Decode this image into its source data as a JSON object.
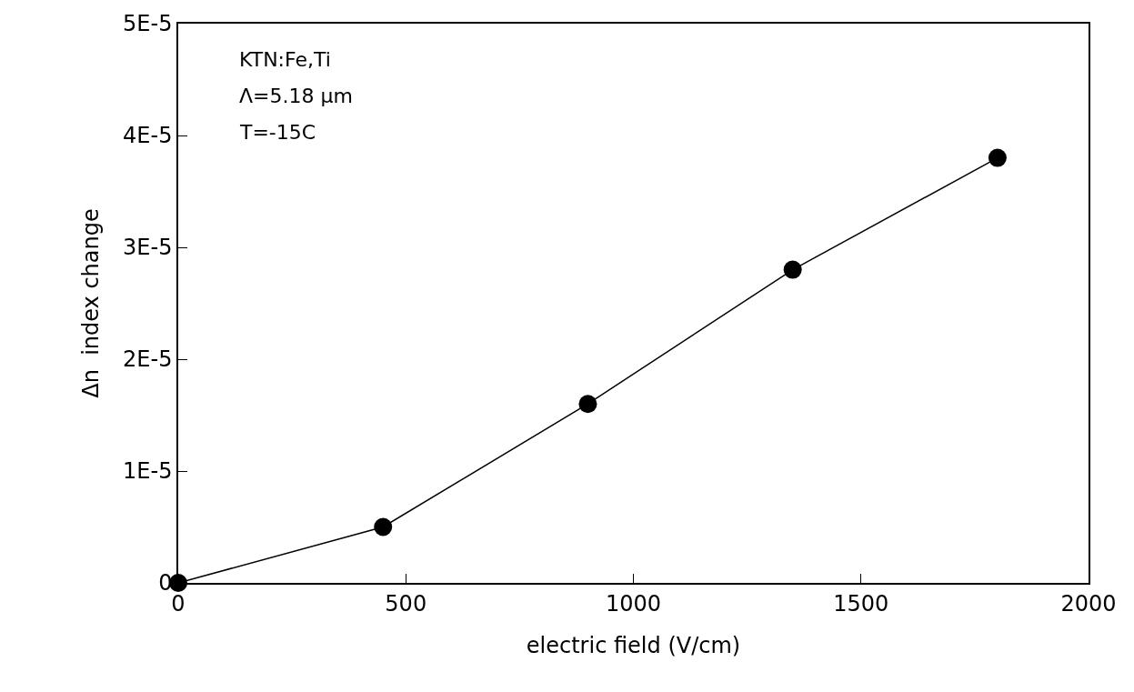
{
  "chart_data": {
    "type": "line",
    "xlabel": "electric field (V/cm)",
    "ylabel": "Δn  index change",
    "x": [
      0,
      450,
      900,
      1350,
      1800
    ],
    "series": [
      {
        "color": "#000000",
        "values": [
          0,
          5e-06,
          1.6e-05,
          2.8e-05,
          3.8e-05
        ]
      }
    ],
    "xlim": [
      0,
      2000
    ],
    "xticks": [
      0,
      500,
      1000,
      1500,
      2000
    ],
    "ylim": [
      0,
      5e-05
    ],
    "yticks": [
      0,
      {
        "value": 1e-05,
        "label": "1E-5"
      },
      {
        "value": 2e-05,
        "label": "2E-5"
      },
      {
        "value": 3e-05,
        "label": "3E-5"
      },
      {
        "value": 4e-05,
        "label": "4E-5"
      },
      {
        "value": 5e-05,
        "label": "5E-5"
      }
    ],
    "annotations": [
      "KTN:Fe,Ti",
      "Λ=5.18 μm",
      "T=-15C"
    ],
    "marker": "circle",
    "line_style": "solid"
  }
}
